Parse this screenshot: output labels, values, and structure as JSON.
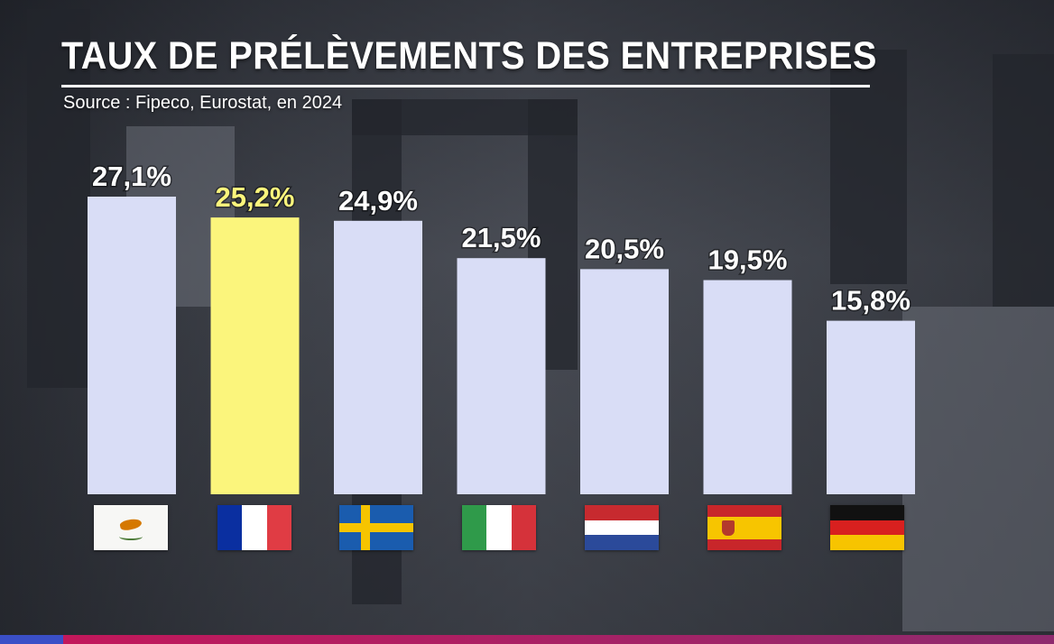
{
  "title": "TAUX DE PRÉLÈVEMENTS DES ENTREPRISES",
  "source": "Source : Fipeco, Eurostat, en 2024",
  "colors": {
    "bar": "#d9ddf6",
    "highlight_bar": "#fbf57c",
    "label": "#ffffff",
    "highlight_label": "#fbf57c"
  },
  "chart_data": {
    "type": "bar",
    "title": "TAUX DE PRÉLÈVEMENTS DES ENTREPRISES",
    "xlabel": "",
    "ylabel": "",
    "ylim": [
      0,
      27.1
    ],
    "categories": [
      "cyprus-flag",
      "france-flag",
      "sweden-flag",
      "italy-flag",
      "netherlands-flag",
      "spain-flag",
      "germany-flag"
    ],
    "values": [
      27.1,
      25.2,
      24.9,
      21.5,
      20.5,
      19.5,
      15.8
    ],
    "labels": [
      "27,1%",
      "25,2%",
      "24,9%",
      "21,5%",
      "20,5%",
      "19,5%",
      "15,8%"
    ],
    "highlight": [
      false,
      true,
      false,
      false,
      false,
      false,
      false
    ]
  }
}
